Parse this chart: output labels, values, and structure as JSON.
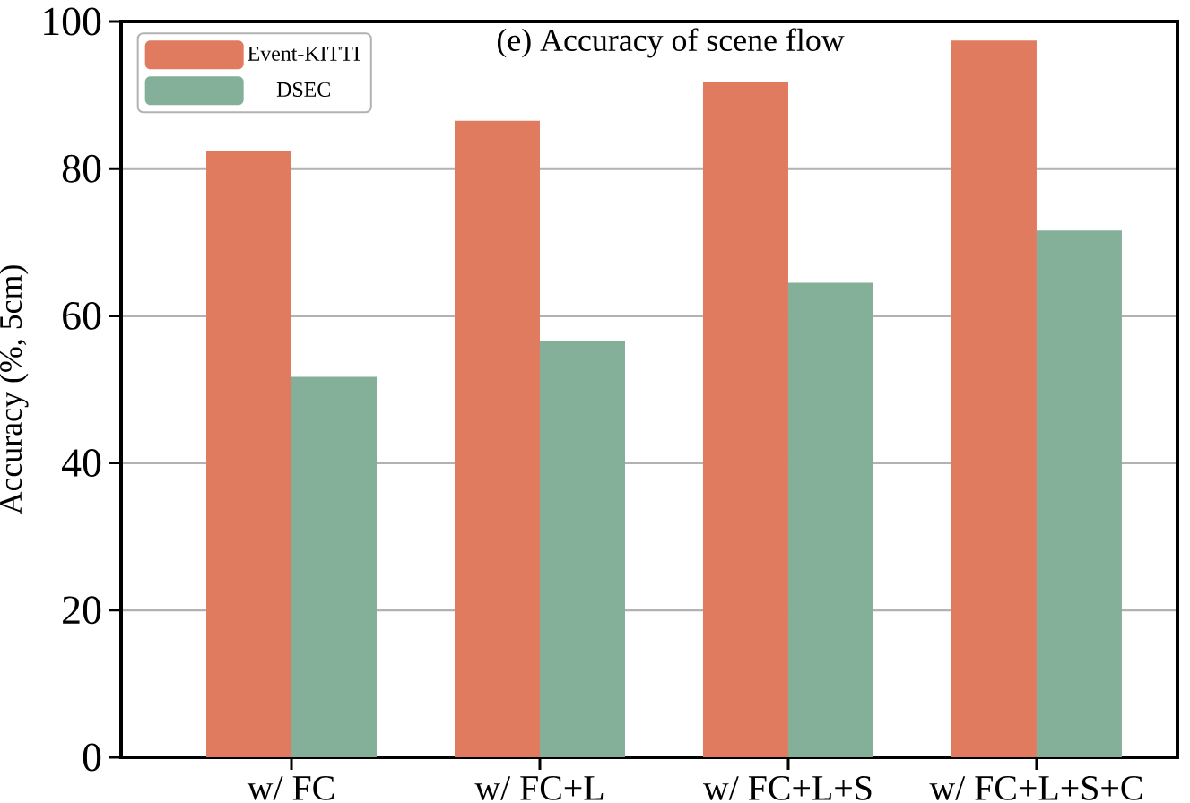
{
  "chart_data": {
    "type": "bar",
    "title": "(e) Accuracy of scene flow",
    "ylabel": "Accuracy (%, 5cm)",
    "categories": [
      "w/ FC",
      "w/ FC+L",
      "w/ FC+L+S",
      "w/ FC+L+S+C"
    ],
    "series": [
      {
        "name": "Event-KITTI",
        "color": "#e07b5f",
        "values": [
          82.4,
          86.5,
          91.8,
          97.4
        ]
      },
      {
        "name": "DSEC",
        "color": "#84b09a",
        "values": [
          51.7,
          56.6,
          64.5,
          71.6
        ]
      }
    ],
    "ylim": [
      0,
      100
    ],
    "yticks": [
      0,
      20,
      40,
      60,
      80,
      100
    ],
    "grid": "y",
    "legend": "top left"
  }
}
